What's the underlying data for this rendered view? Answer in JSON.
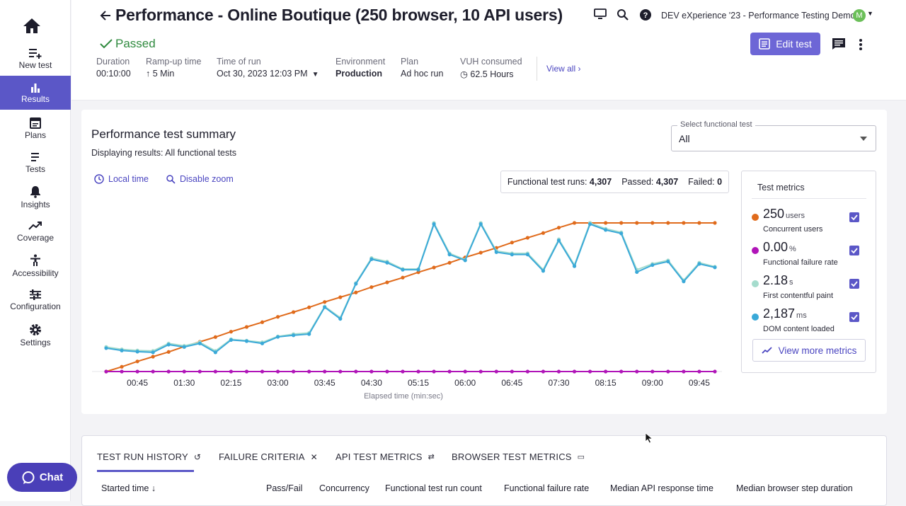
{
  "nav": {
    "items": [
      {
        "label": "New test"
      },
      {
        "label": "Results"
      },
      {
        "label": "Plans"
      },
      {
        "label": "Tests"
      },
      {
        "label": "Insights"
      },
      {
        "label": "Coverage"
      },
      {
        "label": "Accessibility"
      },
      {
        "label": "Configuration"
      },
      {
        "label": "Settings"
      }
    ],
    "chat_label": "Chat"
  },
  "header": {
    "title": "Performance - Online Boutique (250 browser, 10 API users)",
    "status": "Passed",
    "meta": [
      {
        "label": "Duration",
        "value": "00:10:00"
      },
      {
        "label": "Ramp-up time",
        "value": "5 Min"
      },
      {
        "label": "Time of run",
        "value": "Oct 30, 2023 12:03 PM"
      },
      {
        "label": "Environment",
        "value": "Production"
      },
      {
        "label": "Plan",
        "value": "Ad hoc run"
      },
      {
        "label": "VUH consumed",
        "value": "62.5 Hours"
      }
    ],
    "view_all": "View all",
    "project": "DEV eXperience '23 - Performance Testing Demo",
    "avatar_initial": "M",
    "edit_label": "Edit test"
  },
  "summary": {
    "title": "Performance test summary",
    "subtitle": "Displaying results: All functional tests",
    "local_time": "Local time",
    "disable_zoom": "Disable zoom",
    "select_label": "Select functional test",
    "select_value": "All",
    "runs_label": "Functional test runs:",
    "runs_value": "4,307",
    "passed_label": "Passed:",
    "passed_value": "4,307",
    "failed_label": "Failed:",
    "failed_value": "0"
  },
  "metrics": {
    "title": "Test metrics",
    "items": [
      {
        "value": "250",
        "unit": "users",
        "label": "Concurrent users",
        "color": "#e06b1c"
      },
      {
        "value": "0.00",
        "unit": "%",
        "label": "Functional failure rate",
        "color": "#b014b8"
      },
      {
        "value": "2.18",
        "unit": "s",
        "label": "First contentful paint",
        "color": "#a5dccd"
      },
      {
        "value": "2,187",
        "unit": "ms",
        "label": "DOM content loaded",
        "color": "#3aa9d8"
      }
    ],
    "view_more": "View more metrics"
  },
  "chart_data": {
    "type": "line",
    "xlabel": "Elapsed time (min:sec)",
    "x_ticks": [
      "00:45",
      "01:30",
      "02:15",
      "03:00",
      "03:45",
      "04:30",
      "05:15",
      "06:00",
      "06:45",
      "07:30",
      "08:15",
      "09:00",
      "09:45"
    ],
    "x": [
      15,
      30,
      45,
      60,
      75,
      90,
      105,
      120,
      135,
      150,
      165,
      180,
      195,
      210,
      225,
      240,
      255,
      270,
      285,
      300,
      315,
      330,
      345,
      360,
      375,
      390,
      405,
      420,
      435,
      450,
      465,
      480,
      495,
      510,
      525,
      540,
      555,
      570,
      585,
      600
    ],
    "series": [
      {
        "name": "Concurrent users",
        "color": "#e06b1c",
        "values": [
          0,
          8,
          17,
          25,
          33,
          42,
          50,
          58,
          67,
          75,
          83,
          92,
          100,
          108,
          117,
          125,
          133,
          142,
          150,
          158,
          167,
          175,
          183,
          192,
          200,
          208,
          217,
          225,
          233,
          242,
          250,
          250,
          250,
          250,
          250,
          250,
          250,
          250,
          250,
          250
        ]
      },
      {
        "name": "Functional failure rate",
        "color": "#b014b8",
        "values": [
          0,
          0,
          0,
          0,
          0,
          0,
          0,
          0,
          0,
          0,
          0,
          0,
          0,
          0,
          0,
          0,
          0,
          0,
          0,
          0,
          0,
          0,
          0,
          0,
          0,
          0,
          0,
          0,
          0,
          0,
          0,
          0,
          0,
          0,
          0,
          0,
          0,
          0,
          0,
          0
        ]
      },
      {
        "name": "First contentful paint",
        "color": "#a5dccd",
        "values": [
          1.05,
          0.95,
          0.9,
          0.88,
          1.2,
          1.1,
          1.25,
          0.88,
          1.38,
          1.32,
          1.25,
          1.5,
          1.6,
          1.65,
          2.78,
          2.3,
          3.78,
          4.85,
          4.7,
          4.38,
          4.38,
          6.35,
          5.05,
          4.78,
          6.35,
          5.15,
          5.05,
          5.05,
          4.35,
          5.65,
          4.55,
          6.35,
          6.1,
          5.95,
          4.35,
          4.6,
          4.75,
          3.9,
          4.65,
          4.48
        ]
      },
      {
        "name": "DOM content loaded",
        "color": "#3aa9d8",
        "values": [
          1.0,
          0.9,
          0.85,
          0.82,
          1.15,
          1.05,
          1.2,
          0.82,
          1.35,
          1.3,
          1.2,
          1.48,
          1.55,
          1.6,
          2.75,
          2.25,
          3.75,
          4.8,
          4.65,
          4.35,
          4.35,
          6.3,
          5.0,
          4.75,
          6.3,
          5.1,
          5.0,
          5.0,
          4.3,
          5.6,
          4.5,
          6.3,
          6.05,
          5.9,
          4.25,
          4.55,
          4.7,
          3.85,
          4.6,
          4.45
        ]
      }
    ]
  },
  "bottom": {
    "tabs": [
      "TEST RUN HISTORY",
      "FAILURE CRITERIA",
      "API TEST METRICS",
      "BROWSER TEST METRICS"
    ],
    "columns": [
      "Started time",
      "Pass/Fail",
      "Concurrency",
      "Functional test run count",
      "Functional failure rate",
      "Median API response time",
      "Median browser step duration"
    ]
  }
}
